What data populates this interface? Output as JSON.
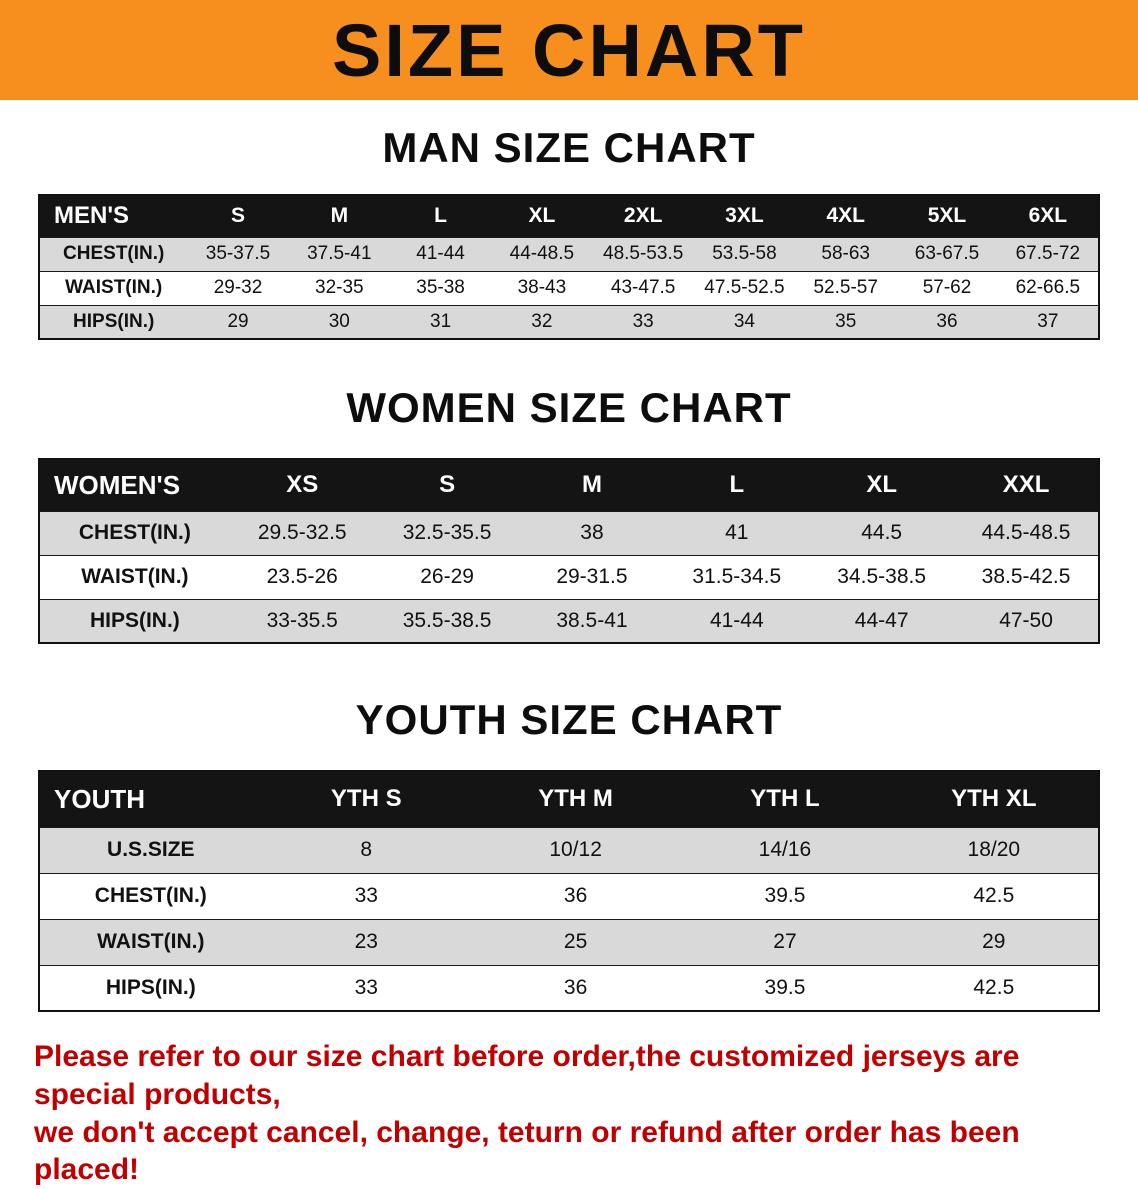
{
  "banner": {
    "title": "SIZE CHART",
    "bg_color": "#f68f1e"
  },
  "colors": {
    "banner_orange": "#f68f1e",
    "table_header_black": "#141414",
    "row_stripe_gray": "#d9d9d9",
    "notice_red": "#c00000"
  },
  "sections": [
    {
      "heading": "MAN SIZE CHART",
      "table": {
        "header": [
          "MEN'S",
          "S",
          "M",
          "L",
          "XL",
          "2XL",
          "3XL",
          "4XL",
          "5XL",
          "6XL"
        ],
        "rows": [
          [
            "CHEST(IN.)",
            "35-37.5",
            "37.5-41",
            "41-44",
            "44-48.5",
            "48.5-53.5",
            "53.5-58",
            "58-63",
            "63-67.5",
            "67.5-72"
          ],
          [
            "WAIST(IN.)",
            "29-32",
            "32-35",
            "35-38",
            "38-43",
            "43-47.5",
            "47.5-52.5",
            "52.5-57",
            "57-62",
            "62-66.5"
          ],
          [
            "HIPS(IN.)",
            "29",
            "30",
            "31",
            "32",
            "33",
            "34",
            "35",
            "36",
            "37"
          ]
        ]
      }
    },
    {
      "heading": "WOMEN SIZE CHART",
      "table": {
        "header": [
          "WOMEN'S",
          "XS",
          "S",
          "M",
          "L",
          "XL",
          "XXL"
        ],
        "rows": [
          [
            "CHEST(IN.)",
            "29.5-32.5",
            "32.5-35.5",
            "38",
            "41",
            "44.5",
            "44.5-48.5"
          ],
          [
            "WAIST(IN.)",
            "23.5-26",
            "26-29",
            "29-31.5",
            "31.5-34.5",
            "34.5-38.5",
            "38.5-42.5"
          ],
          [
            "HIPS(IN.)",
            "33-35.5",
            "35.5-38.5",
            "38.5-41",
            "41-44",
            "44-47",
            "47-50"
          ]
        ]
      }
    },
    {
      "heading": "YOUTH SIZE CHART",
      "table": {
        "header": [
          "YOUTH",
          "YTH S",
          "YTH M",
          "YTH L",
          "YTH XL"
        ],
        "rows": [
          [
            "U.S.SIZE",
            "8",
            "10/12",
            "14/16",
            "18/20"
          ],
          [
            "CHEST(IN.)",
            "33",
            "36",
            "39.5",
            "42.5"
          ],
          [
            "WAIST(IN.)",
            "23",
            "25",
            "27",
            "29"
          ],
          [
            "HIPS(IN.)",
            "33",
            "36",
            "39.5",
            "42.5"
          ]
        ]
      }
    }
  ],
  "footer": {
    "line1": "Please refer to our size chart before order,the customized jerseys are special products,",
    "line2": "we don't accept cancel, change, teturn or refund after order has been placed!"
  }
}
